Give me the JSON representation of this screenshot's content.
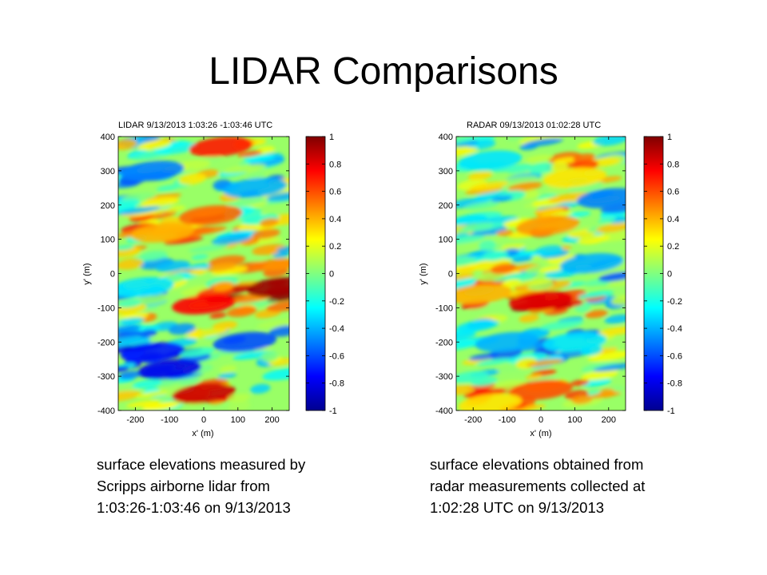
{
  "slide": {
    "title": "LIDAR Comparisons"
  },
  "captions": {
    "left": [
      "surface elevations measured by",
      "Scripps airborne lidar from",
      "1:03:26-1:03:46  on 9/13/2013"
    ],
    "right": [
      "surface elevations obtained from",
      "radar measurements collected at",
      "1:02:28 UTC on 9/13/2013"
    ]
  },
  "colormap": [
    "#00008f",
    "#0000ff",
    "#0080ff",
    "#00ffff",
    "#80ff80",
    "#ffff00",
    "#ff8000",
    "#ff0000",
    "#800000"
  ],
  "chart_data": [
    {
      "type": "heatmap",
      "title": "LIDAR 9/13/2013 1:03:26 -1:03:46 UTC",
      "xlabel": "x' (m)",
      "ylabel": "y' (m)",
      "xlim": [
        -250,
        250
      ],
      "ylim": [
        -400,
        400
      ],
      "x_ticks": [
        -200,
        -100,
        0,
        100,
        200
      ],
      "y_ticks": [
        400,
        300,
        200,
        100,
        0,
        -100,
        -200,
        -300,
        -400
      ],
      "colorbar": {
        "range": [
          -1,
          1
        ],
        "ticks": [
          "1",
          "0.8",
          "0.6",
          "0.4",
          "0.2",
          "0",
          "-0.2",
          "-0.4",
          "-0.6",
          "-0.8",
          "-1"
        ]
      },
      "features": [
        {
          "x": 50,
          "y": 370,
          "v": 0.7
        },
        {
          "x": -150,
          "y": 300,
          "v": -0.5
        },
        {
          "x": 150,
          "y": 250,
          "v": -0.4
        },
        {
          "x": 20,
          "y": 170,
          "v": 0.55
        },
        {
          "x": -120,
          "y": 120,
          "v": 0.4
        },
        {
          "x": 0,
          "y": -90,
          "v": 0.75
        },
        {
          "x": -180,
          "y": -40,
          "v": -0.3
        },
        {
          "x": 120,
          "y": -200,
          "v": -0.6
        },
        {
          "x": -150,
          "y": -230,
          "v": -0.7
        },
        {
          "x": -100,
          "y": -280,
          "v": -0.8
        },
        {
          "x": 0,
          "y": -350,
          "v": 0.85
        },
        {
          "x": 220,
          "y": -40,
          "v": 0.95
        }
      ]
    },
    {
      "type": "heatmap",
      "title": "RADAR 09/13/2013 01:02:28 UTC",
      "xlabel": "x' (m)",
      "ylabel": "y' (m)",
      "xlim": [
        -250,
        250
      ],
      "ylim": [
        -400,
        400
      ],
      "x_ticks": [
        -200,
        -100,
        0,
        100,
        200
      ],
      "y_ticks": [
        400,
        300,
        200,
        100,
        0,
        -100,
        -200,
        -300,
        -400
      ],
      "colorbar": {
        "range": [
          -1,
          1
        ],
        "ticks": [
          "1",
          "0.8",
          "0.6",
          "0.4",
          "0.2",
          "0",
          "-0.2",
          "-0.4",
          "-0.6",
          "-0.8",
          "-1"
        ]
      },
      "features": [
        {
          "x": -150,
          "y": 330,
          "v": -0.3
        },
        {
          "x": 100,
          "y": 280,
          "v": 0.3
        },
        {
          "x": 200,
          "y": 220,
          "v": -0.5
        },
        {
          "x": 20,
          "y": 140,
          "v": 0.45
        },
        {
          "x": 0,
          "y": -80,
          "v": 0.8
        },
        {
          "x": 150,
          "y": 30,
          "v": -0.4
        },
        {
          "x": -100,
          "y": -200,
          "v": -0.4
        },
        {
          "x": 100,
          "y": -200,
          "v": -0.3
        },
        {
          "x": -180,
          "y": -60,
          "v": 0.4
        },
        {
          "x": 0,
          "y": -340,
          "v": 0.6
        },
        {
          "x": -150,
          "y": -380,
          "v": 0.3
        }
      ]
    }
  ]
}
